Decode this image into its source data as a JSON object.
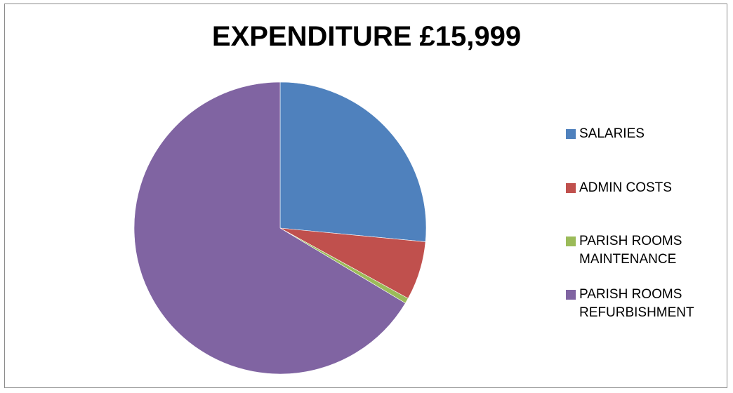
{
  "chart_data": {
    "type": "pie",
    "title": "EXPENDITURE £15,999",
    "slices": [
      {
        "label": "SALARIES",
        "value": 26.5,
        "color": "#4F81BD"
      },
      {
        "label": "ADMIN COSTS",
        "value": 6.5,
        "color": "#C0504D"
      },
      {
        "label": "PARISH ROOMS MAINTENANCE",
        "value": 0.6,
        "color": "#9BBB59"
      },
      {
        "label": "PARISH ROOMS REFURBISHMENT",
        "value": 66.4,
        "color": "#8064A2"
      }
    ],
    "legend_position": "right"
  }
}
